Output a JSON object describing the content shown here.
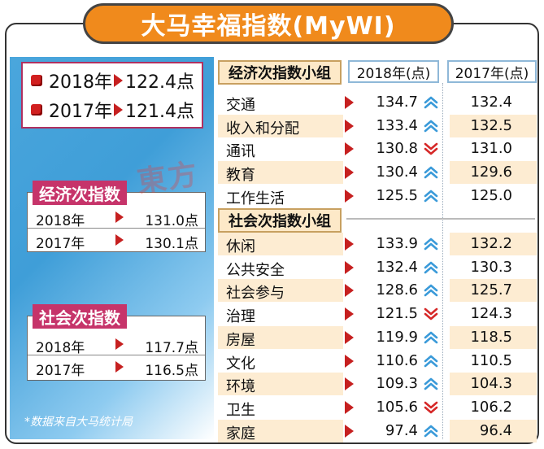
{
  "title": "大马幸福指数(MyWI)",
  "overall": [
    {
      "year": "2018年",
      "value": "122.4点"
    },
    {
      "year": "2017年",
      "value": "121.4点"
    }
  ],
  "economic_index": {
    "label": "经济次指数",
    "rows": [
      {
        "year": "2018年",
        "value": "131.0点"
      },
      {
        "year": "2017年",
        "value": "130.1点"
      }
    ]
  },
  "social_index": {
    "label": "社会次指数",
    "rows": [
      {
        "year": "2018年",
        "value": "117.7点"
      },
      {
        "year": "2017年",
        "value": "116.5点"
      }
    ]
  },
  "footnote": "*数据来自大马统计局",
  "watermark": "東方",
  "colors": {
    "up": "#3a9ad9",
    "down": "#d62828",
    "accent": "#f08a1c",
    "badge": "#c6346a"
  },
  "chart_data": {
    "type": "table",
    "columns": [
      "",
      "2018年(点)",
      "2017年(点)"
    ],
    "groups": [
      {
        "name": "经济次指数小组",
        "items": [
          {
            "name": "交通",
            "v2018": 134.7,
            "v2017": 132.4,
            "trend": "up"
          },
          {
            "name": "收入和分配",
            "v2018": 133.4,
            "v2017": 132.5,
            "trend": "up"
          },
          {
            "name": "通讯",
            "v2018": 130.8,
            "v2017": 131.0,
            "trend": "down"
          },
          {
            "name": "教育",
            "v2018": 130.4,
            "v2017": 129.6,
            "trend": "up"
          },
          {
            "name": "工作生活",
            "v2018": 125.5,
            "v2017": 125.0,
            "trend": "up"
          }
        ]
      },
      {
        "name": "社会次指数小组",
        "items": [
          {
            "name": "休闲",
            "v2018": 133.9,
            "v2017": 132.2,
            "trend": "up"
          },
          {
            "name": "公共安全",
            "v2018": 132.4,
            "v2017": 130.3,
            "trend": "up"
          },
          {
            "name": "社会参与",
            "v2018": 128.6,
            "v2017": 125.7,
            "trend": "up"
          },
          {
            "name": "治理",
            "v2018": 121.5,
            "v2017": 124.3,
            "trend": "down"
          },
          {
            "name": "房屋",
            "v2018": 119.9,
            "v2017": 118.5,
            "trend": "up"
          },
          {
            "name": "文化",
            "v2018": 110.6,
            "v2017": 110.5,
            "trend": "up"
          },
          {
            "name": "环境",
            "v2018": 109.3,
            "v2017": 104.3,
            "trend": "up"
          },
          {
            "name": "卫生",
            "v2018": 105.6,
            "v2017": 106.2,
            "trend": "down"
          },
          {
            "name": "家庭",
            "v2018": 97.4,
            "v2017": 96.4,
            "trend": "up"
          }
        ]
      }
    ]
  }
}
